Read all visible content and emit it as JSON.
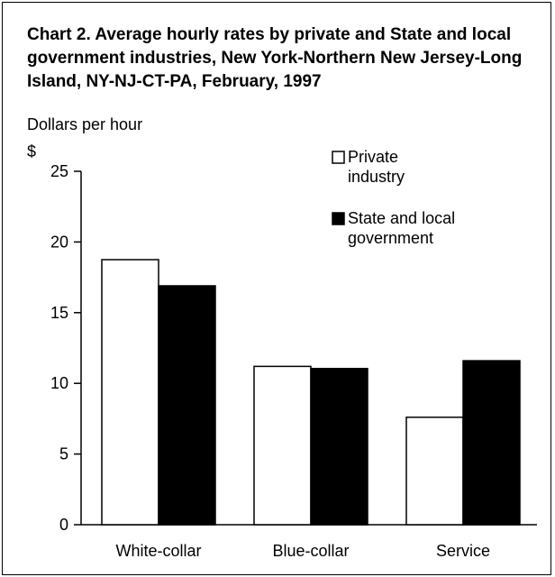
{
  "chart_data": {
    "type": "bar",
    "title": "Chart 2. Average hourly rates by private and State and local government industries, New York-Northern New Jersey-Long Island, NY-NJ-CT-PA, February, 1997",
    "ylabel": "Dollars per hour",
    "yunit": "$",
    "xlabel": "",
    "ylim": [
      0,
      25
    ],
    "yticks": [
      0,
      5,
      10,
      15,
      20,
      25
    ],
    "categories": [
      "White-collar",
      "Blue-collar",
      "Service"
    ],
    "series": [
      {
        "name": "Private industry",
        "legend_lines": [
          "Private",
          "industry"
        ],
        "color": "#ffffff",
        "values": [
          18.75,
          11.2,
          7.6
        ]
      },
      {
        "name": "State and local government",
        "legend_lines": [
          "State and local",
          "government"
        ],
        "color": "#000000",
        "values": [
          16.9,
          11.05,
          11.6
        ]
      }
    ],
    "legend_position": "top-right",
    "grid": false
  }
}
